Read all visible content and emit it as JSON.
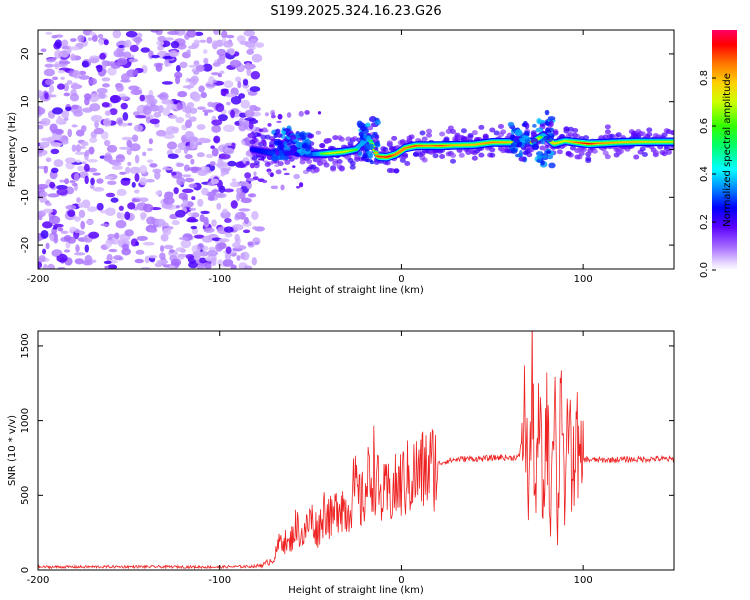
{
  "figure": {
    "title": "S199.2025.324.16.23.G26"
  },
  "chart_data": [
    {
      "type": "heatmap",
      "name": "spectrogram",
      "xlabel": "Height of straight line (km)",
      "ylabel": "Frequency (Hz)",
      "xlim": [
        -200,
        150
      ],
      "ylim": [
        -25,
        25
      ],
      "xticks": [
        -200,
        -100,
        0,
        100
      ],
      "yticks": [
        -20,
        -10,
        0,
        10,
        20
      ],
      "xtick_labels": [
        "-200",
        "-100",
        "0",
        "100"
      ],
      "ytick_labels": [
        "-20",
        "-10",
        "0",
        "10",
        "20"
      ],
      "noise_region": [
        -200,
        -78
      ],
      "signal_track": [
        {
          "x": -82,
          "f": 0.0,
          "amp": 0.35
        },
        {
          "x": -75,
          "f": -0.5,
          "amp": 0.4
        },
        {
          "x": -68,
          "f": -1.0,
          "amp": 0.45
        },
        {
          "x": -60,
          "f": -0.5,
          "amp": 0.4
        },
        {
          "x": -50,
          "f": -1.0,
          "amp": 0.45
        },
        {
          "x": -40,
          "f": -0.8,
          "amp": 0.7
        },
        {
          "x": -32,
          "f": -0.5,
          "amp": 0.75
        },
        {
          "x": -25,
          "f": 0.0,
          "amp": 0.6
        },
        {
          "x": -18,
          "f": 2.5,
          "amp": 0.55
        },
        {
          "x": -13,
          "f": -1.5,
          "amp": 0.9
        },
        {
          "x": -8,
          "f": -1.6,
          "amp": 0.95
        },
        {
          "x": -3,
          "f": -1.0,
          "amp": 0.85
        },
        {
          "x": 2,
          "f": 0.3,
          "amp": 0.85
        },
        {
          "x": 8,
          "f": 0.8,
          "amp": 0.9
        },
        {
          "x": 15,
          "f": 0.8,
          "amp": 0.85
        },
        {
          "x": 22,
          "f": 0.8,
          "amp": 0.9
        },
        {
          "x": 30,
          "f": 0.9,
          "amp": 0.8
        },
        {
          "x": 40,
          "f": 1.0,
          "amp": 0.8
        },
        {
          "x": 50,
          "f": 1.5,
          "amp": 0.85
        },
        {
          "x": 60,
          "f": 1.5,
          "amp": 0.8
        },
        {
          "x": 66,
          "f": 2.0,
          "amp": 0.5
        },
        {
          "x": 72,
          "f": 1.5,
          "amp": 0.85
        },
        {
          "x": 78,
          "f": 3.0,
          "amp": 0.55
        },
        {
          "x": 84,
          "f": 1.2,
          "amp": 0.8
        },
        {
          "x": 90,
          "f": 1.8,
          "amp": 0.7
        },
        {
          "x": 96,
          "f": 1.5,
          "amp": 0.85
        },
        {
          "x": 103,
          "f": 1.2,
          "amp": 0.95
        },
        {
          "x": 110,
          "f": 1.3,
          "amp": 0.85
        },
        {
          "x": 120,
          "f": 1.5,
          "amp": 0.8
        },
        {
          "x": 130,
          "f": 1.6,
          "amp": 0.8
        },
        {
          "x": 140,
          "f": 1.6,
          "amp": 0.75
        },
        {
          "x": 150,
          "f": 1.6,
          "amp": 0.75
        }
      ],
      "colorbar": {
        "label": "Normalized spectral amplitude",
        "range": [
          0,
          1
        ],
        "ticks": [
          0.0,
          0.2,
          0.4,
          0.6,
          0.8
        ],
        "tick_labels": [
          "0.0",
          "0.2",
          "0.4",
          "0.6",
          "0.8"
        ]
      }
    },
    {
      "type": "line",
      "name": "snr",
      "xlabel": "Height of straight line (km)",
      "ylabel": "SNR (10 * v/v)",
      "xlim": [
        -200,
        150
      ],
      "ylim": [
        0,
        1600
      ],
      "xticks": [
        -200,
        -100,
        0,
        100
      ],
      "yticks": [
        0,
        500,
        1000,
        1500
      ],
      "xtick_labels": [
        "-200",
        "-100",
        "0",
        "100"
      ],
      "ytick_labels": [
        "0",
        "500",
        "1000",
        "1500"
      ],
      "color": "#ee2222",
      "series": [
        {
          "name": "SNR",
          "x": [
            -200,
            -150,
            -100,
            -80,
            -75,
            -70,
            -66,
            -62,
            -58,
            -54,
            -50,
            -46,
            -42,
            -38,
            -34,
            -30,
            -26,
            -22,
            -18,
            -15,
            -12,
            -8,
            -4,
            0,
            5,
            10,
            15,
            20,
            25,
            30,
            35,
            40,
            45,
            50,
            55,
            60,
            65,
            68,
            70,
            72,
            74,
            76,
            78,
            80,
            82,
            84,
            86,
            88,
            90,
            92,
            94,
            96,
            98,
            100,
            110,
            120,
            130,
            140,
            150
          ],
          "y": [
            20,
            22,
            20,
            25,
            40,
            80,
            220,
            160,
            300,
            220,
            350,
            260,
            420,
            320,
            480,
            380,
            550,
            440,
            600,
            700,
            480,
            500,
            530,
            580,
            620,
            650,
            680,
            710,
            730,
            740,
            745,
            745,
            745,
            750,
            755,
            750,
            760,
            1050,
            500,
            1200,
            450,
            1100,
            350,
            1150,
            300,
            1450,
            200,
            1550,
            250,
            1200,
            500,
            1000,
            650,
            740,
            735,
            740,
            740,
            745,
            740
          ]
        }
      ]
    }
  ]
}
